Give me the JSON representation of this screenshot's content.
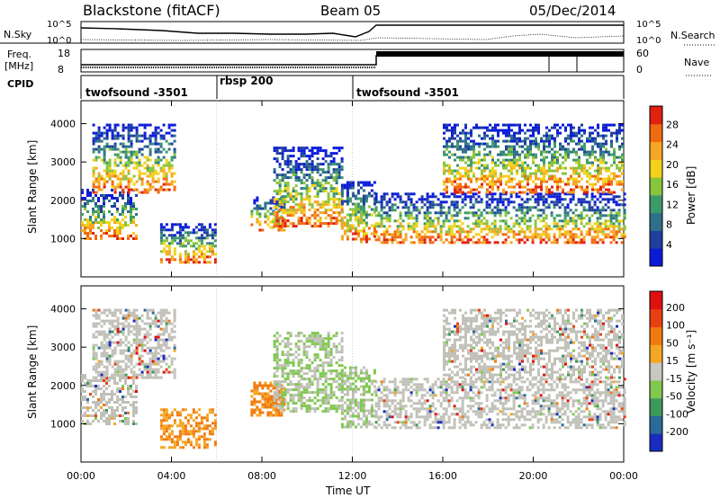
{
  "header": {
    "station": "Blackstone (fitACF)",
    "beam": "Beam 05",
    "date": "05/Dec/2014"
  },
  "noise_panel": {
    "left_label": "N.Sky",
    "right_label": "N.Search",
    "left_ticks": [
      "10^5",
      "10^0"
    ],
    "right_ticks": [
      "10^5",
      "10^0"
    ]
  },
  "freq_panel": {
    "left_label_line1": "Freq.",
    "left_label_line2": "[MHz]",
    "right_label": "Nave",
    "left_ticks": [
      "18",
      "8"
    ],
    "right_ticks": [
      "60",
      "0"
    ]
  },
  "cpid": {
    "label": "CPID",
    "segments": [
      {
        "name": "twofsound -3501",
        "start_h": 0.0,
        "end_h": 6.0
      },
      {
        "name": "rbsp 200",
        "start_h": 6.0,
        "end_h": 12.0
      },
      {
        "name": "twofsound -3501",
        "start_h": 12.0,
        "end_h": 24.0
      }
    ]
  },
  "chart_data": {
    "type": "heatmap",
    "x_label": "Time UT",
    "x_range_hours": [
      0,
      24
    ],
    "x_ticks": [
      "00:00",
      "04:00",
      "08:00",
      "12:00",
      "16:00",
      "20:00",
      "00:00"
    ],
    "y_range_km": [
      0,
      4600
    ],
    "y_ticks": [
      "1000",
      "2000",
      "3000",
      "4000"
    ],
    "power": {
      "ylabel": "Slant Range [km]",
      "colorbar_label": "Power [dB]",
      "colorbar_ticks": [
        "28",
        "24",
        "20",
        "16",
        "12",
        "8",
        "4"
      ],
      "colors": [
        "#0a1bd8",
        "#1f3f9e",
        "#2e6f8a",
        "#3c9a6a",
        "#88c43c",
        "#f2d21a",
        "#f5a623",
        "#f06a10",
        "#e02010"
      ]
    },
    "velocity": {
      "ylabel": "Slant Range [km]",
      "colorbar_label": "Velocity [m s⁻¹]",
      "colorbar_ticks": [
        "200",
        "100",
        "50",
        "15",
        "-15",
        "-50",
        "-100",
        "-200"
      ],
      "colors": [
        "#1a2cc0",
        "#2a6a9a",
        "#3e9a5a",
        "#80c850",
        "#c8c8c0",
        "#f5a623",
        "#f07a10",
        "#e84010",
        "#e01010"
      ],
      "ground_scatter_color": "#c0c0b8"
    },
    "echo_regions": [
      {
        "t_start": 0.0,
        "t_end": 2.5,
        "r_start": 1000,
        "r_end": 2300
      },
      {
        "t_start": 0.5,
        "t_end": 4.2,
        "r_start": 2200,
        "r_end": 4000
      },
      {
        "t_start": 3.5,
        "t_end": 6.0,
        "r_start": 400,
        "r_end": 1400
      },
      {
        "t_start": 7.5,
        "t_end": 9.0,
        "r_start": 1200,
        "r_end": 2100
      },
      {
        "t_start": 8.5,
        "t_end": 11.5,
        "r_start": 1300,
        "r_end": 3400
      },
      {
        "t_start": 11.5,
        "t_end": 13.0,
        "r_start": 900,
        "r_end": 2500
      },
      {
        "t_start": 13.0,
        "t_end": 24.0,
        "r_start": 900,
        "r_end": 2200
      },
      {
        "t_start": 16.0,
        "t_end": 24.0,
        "r_start": 2200,
        "r_end": 4000
      }
    ]
  }
}
